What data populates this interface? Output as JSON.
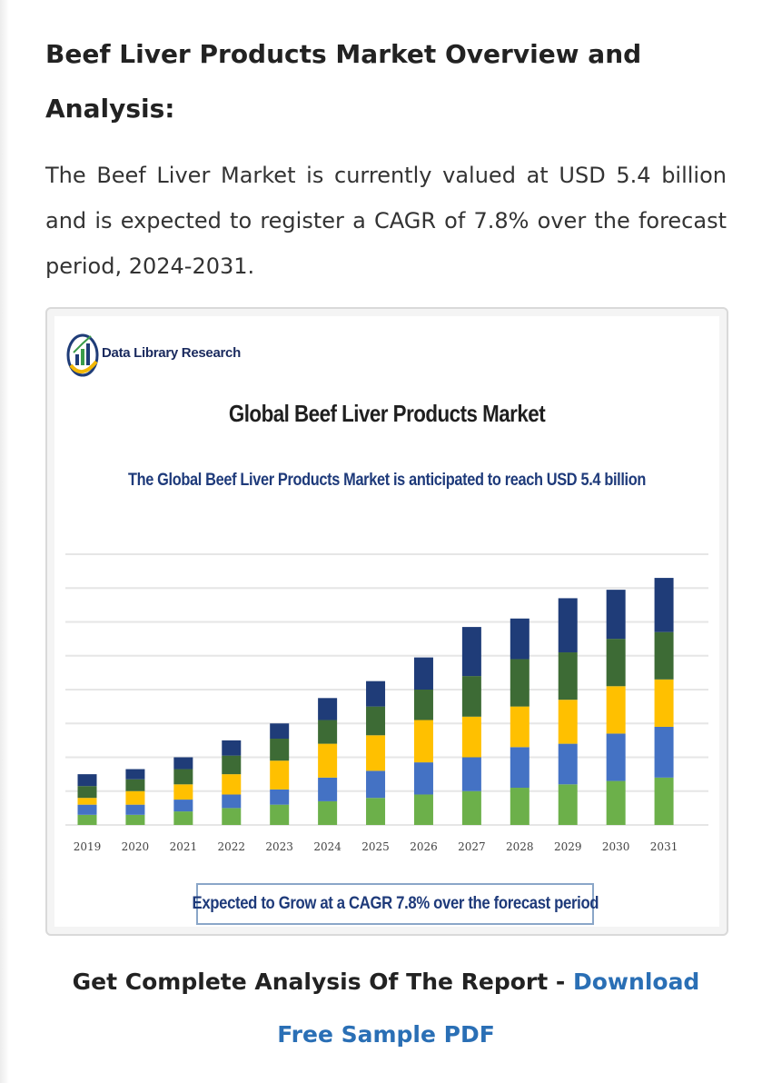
{
  "article": {
    "heading": "Beef Liver Products Market Overview and Analysis:",
    "intro": "The Beef Liver Market is currently valued at USD 5.4 billion and is expected to register a CAGR of 7.8% over the forecast period, 2024-2031."
  },
  "figure": {
    "brand_name": "Data Library Research",
    "logo_icon": "bar-chart-globe-logo",
    "cagr_note": "Expected to Grow at a CAGR 7.8% over the forecast period"
  },
  "cta": {
    "prefix": "Get Complete Analysis Of The Report - ",
    "link_label": "Download Free Sample PDF"
  },
  "colors": {
    "accent_link": "#2a6fb5",
    "series": [
      "#6cb04a",
      "#4472c4",
      "#ffc000",
      "#3d6b35",
      "#1f3c78"
    ]
  },
  "chart_data": {
    "type": "bar",
    "stacked": true,
    "title": "Global Beef Liver Products Market",
    "subtitle": "The Global Beef Liver Products Market is anticipated to reach USD 5.4 billion",
    "xlabel": "",
    "ylabel": "",
    "grid": true,
    "y_axis_labels_shown": false,
    "ylim": [
      0,
      8
    ],
    "categories": [
      "2019",
      "2020",
      "2021",
      "2022",
      "2023",
      "2024",
      "2025",
      "2026",
      "2027",
      "2028",
      "2029",
      "2030",
      "2031"
    ],
    "series": [
      {
        "color": "#6cb04a",
        "values": [
          0.3,
          0.3,
          0.4,
          0.5,
          0.6,
          0.7,
          0.8,
          0.9,
          1.0,
          1.1,
          1.2,
          1.3,
          1.4
        ]
      },
      {
        "color": "#4472c4",
        "values": [
          0.3,
          0.3,
          0.35,
          0.4,
          0.45,
          0.7,
          0.8,
          0.95,
          1.0,
          1.2,
          1.2,
          1.4,
          1.5
        ]
      },
      {
        "color": "#ffc000",
        "values": [
          0.2,
          0.4,
          0.45,
          0.6,
          0.85,
          1.0,
          1.05,
          1.25,
          1.2,
          1.2,
          1.3,
          1.4,
          1.4
        ]
      },
      {
        "color": "#3d6b35",
        "values": [
          0.35,
          0.35,
          0.45,
          0.55,
          0.65,
          0.7,
          0.85,
          0.9,
          1.2,
          1.4,
          1.4,
          1.4,
          1.4
        ]
      },
      {
        "color": "#1f3c78",
        "values": [
          0.35,
          0.3,
          0.35,
          0.45,
          0.45,
          0.65,
          0.75,
          0.95,
          1.45,
          1.2,
          1.6,
          1.45,
          1.6
        ]
      }
    ]
  }
}
